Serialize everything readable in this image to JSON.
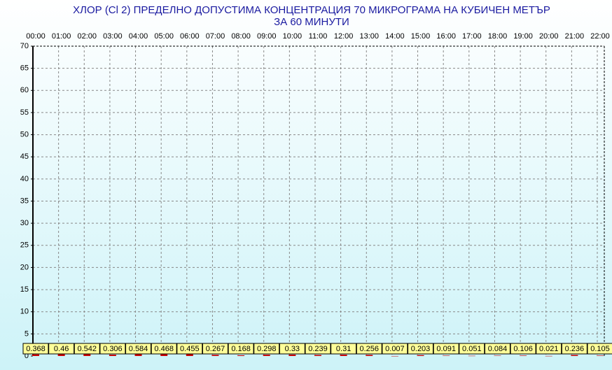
{
  "chart_data": {
    "type": "bar",
    "title": "ХЛОР  (Cl 2)    ПРЕДЕЛНО ДОПУСТИМА КОНЦЕНТРАЦИЯ 70 МИКРОГРАМА  НА КУБИЧЕН МЕТЪР",
    "subtitle": "ЗА 60 МИНУТИ",
    "categories": [
      "00:00",
      "01:00",
      "02:00",
      "03:00",
      "04:00",
      "05:00",
      "06:00",
      "07:00",
      "08:00",
      "09:00",
      "10:00",
      "11:00",
      "12:00",
      "13:00",
      "14:00",
      "15:00",
      "16:00",
      "17:00",
      "18:00",
      "19:00",
      "20:00",
      "21:00",
      "22:00"
    ],
    "values": [
      0.368,
      0.46,
      0.542,
      0.306,
      0.584,
      0.468,
      0.455,
      0.267,
      0.168,
      0.298,
      0.33,
      0.239,
      0.31,
      0.256,
      0.007,
      0.203,
      0.091,
      0.051,
      0.084,
      0.106,
      0.021,
      0.236,
      0.105
    ],
    "color": "#cc0000",
    "ylim": [
      0,
      70
    ],
    "yticks": [
      0,
      5,
      10,
      15,
      20,
      25,
      30,
      35,
      40,
      45,
      50,
      55,
      60,
      65,
      70
    ],
    "grid": true
  }
}
